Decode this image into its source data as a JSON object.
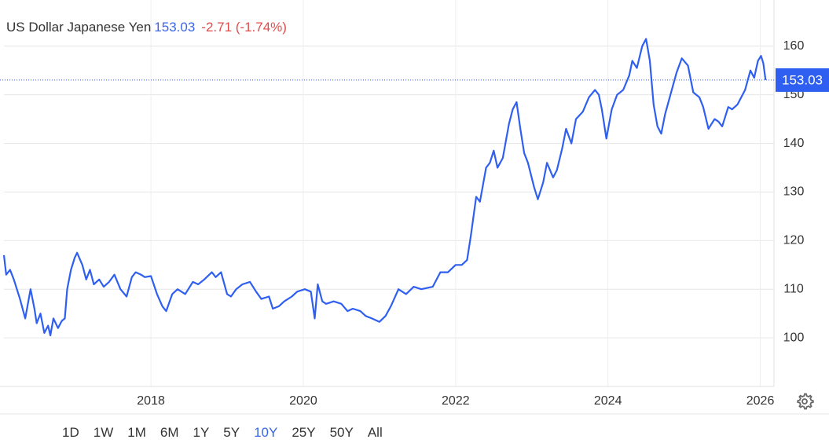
{
  "chart_data": {
    "type": "line",
    "title": "US Dollar Japanese Yen",
    "last": 153.03,
    "change_label": "-2.71 (-1.74%)",
    "color": "#2f5ff0",
    "grid": true,
    "xlim": [
      2016.07,
      2026.18
    ],
    "xticks": [
      2018,
      2020,
      2022,
      2024,
      2026
    ],
    "ylim": [
      90,
      169.5
    ],
    "yticks": [
      100,
      110,
      120,
      130,
      140,
      150,
      160
    ],
    "x": [
      2016.07,
      2016.1,
      2016.15,
      2016.2,
      2016.28,
      2016.35,
      2016.42,
      2016.47,
      2016.5,
      2016.55,
      2016.6,
      2016.65,
      2016.68,
      2016.72,
      2016.78,
      2016.83,
      2016.87,
      2016.9,
      2016.95,
      2017.0,
      2017.03,
      2017.1,
      2017.15,
      2017.2,
      2017.25,
      2017.32,
      2017.38,
      2017.45,
      2017.52,
      2017.6,
      2017.68,
      2017.75,
      2017.8,
      2017.87,
      2017.92,
      2018.0,
      2018.08,
      2018.15,
      2018.2,
      2018.28,
      2018.35,
      2018.45,
      2018.55,
      2018.62,
      2018.7,
      2018.8,
      2018.85,
      2018.92,
      2019.0,
      2019.05,
      2019.12,
      2019.2,
      2019.3,
      2019.38,
      2019.45,
      2019.55,
      2019.6,
      2019.68,
      2019.75,
      2019.85,
      2019.92,
      2020.02,
      2020.1,
      2020.15,
      2020.19,
      2020.25,
      2020.3,
      2020.4,
      2020.5,
      2020.58,
      2020.65,
      2020.75,
      2020.82,
      2020.9,
      2021.0,
      2021.08,
      2021.15,
      2021.25,
      2021.35,
      2021.45,
      2021.55,
      2021.7,
      2021.8,
      2021.9,
      2022.0,
      2022.08,
      2022.15,
      2022.2,
      2022.27,
      2022.32,
      2022.4,
      2022.45,
      2022.5,
      2022.55,
      2022.62,
      2022.7,
      2022.75,
      2022.8,
      2022.85,
      2022.9,
      2022.95,
      2023.03,
      2023.08,
      2023.15,
      2023.2,
      2023.28,
      2023.33,
      2023.4,
      2023.45,
      2023.52,
      2023.58,
      2023.67,
      2023.75,
      2023.83,
      2023.88,
      2023.92,
      2023.98,
      2024.05,
      2024.12,
      2024.2,
      2024.28,
      2024.32,
      2024.38,
      2024.45,
      2024.5,
      2024.55,
      2024.6,
      2024.65,
      2024.7,
      2024.75,
      2024.82,
      2024.9,
      2024.97,
      2025.05,
      2025.12,
      2025.2,
      2025.25,
      2025.32,
      2025.4,
      2025.45,
      2025.5,
      2025.58,
      2025.63,
      2025.7,
      2025.8,
      2025.87,
      2025.92,
      2025.97,
      2026.01,
      2026.04,
      2026.07
    ],
    "values": [
      117,
      113,
      114,
      112,
      108,
      104,
      110,
      106,
      103,
      105,
      101,
      102.5,
      100.5,
      104,
      102,
      103.5,
      104,
      110,
      114,
      116.5,
      117.5,
      115,
      112,
      114,
      111,
      112,
      110.5,
      111.5,
      113,
      110,
      108.5,
      112.5,
      113.5,
      113,
      112.5,
      112.7,
      109,
      106.5,
      105.5,
      109,
      110,
      109,
      111.5,
      111,
      112,
      113.5,
      112.5,
      113.5,
      109,
      108.5,
      110,
      111,
      111.5,
      109.5,
      108,
      108.5,
      106,
      106.5,
      107.5,
      108.5,
      109.5,
      110,
      109.5,
      104,
      111,
      107.5,
      107,
      107.5,
      107,
      105.5,
      106,
      105.5,
      104.5,
      104,
      103.3,
      104.5,
      106.5,
      110,
      109,
      110.5,
      110,
      110.5,
      113.5,
      113.5,
      115,
      115,
      116,
      121,
      129,
      128,
      135,
      136,
      138.5,
      135,
      137,
      144,
      147,
      148.5,
      143,
      138,
      136,
      131,
      128.5,
      132,
      136,
      133,
      134.5,
      139,
      143,
      140,
      145,
      146.5,
      149.5,
      151,
      150,
      147,
      141,
      147,
      150,
      151,
      154,
      157,
      155.5,
      160,
      161.5,
      157,
      148,
      143.5,
      142,
      146,
      150,
      154.5,
      157.5,
      156,
      150.5,
      149.5,
      147.5,
      143,
      145,
      144.5,
      143.5,
      147.5,
      147,
      148,
      151,
      155,
      153.5,
      157,
      158,
      156.5,
      153.03
    ]
  },
  "ranges": [
    "1D",
    "1W",
    "1M",
    "6M",
    "1Y",
    "5Y",
    "10Y",
    "25Y",
    "50Y",
    "All"
  ],
  "active_range": "10Y"
}
